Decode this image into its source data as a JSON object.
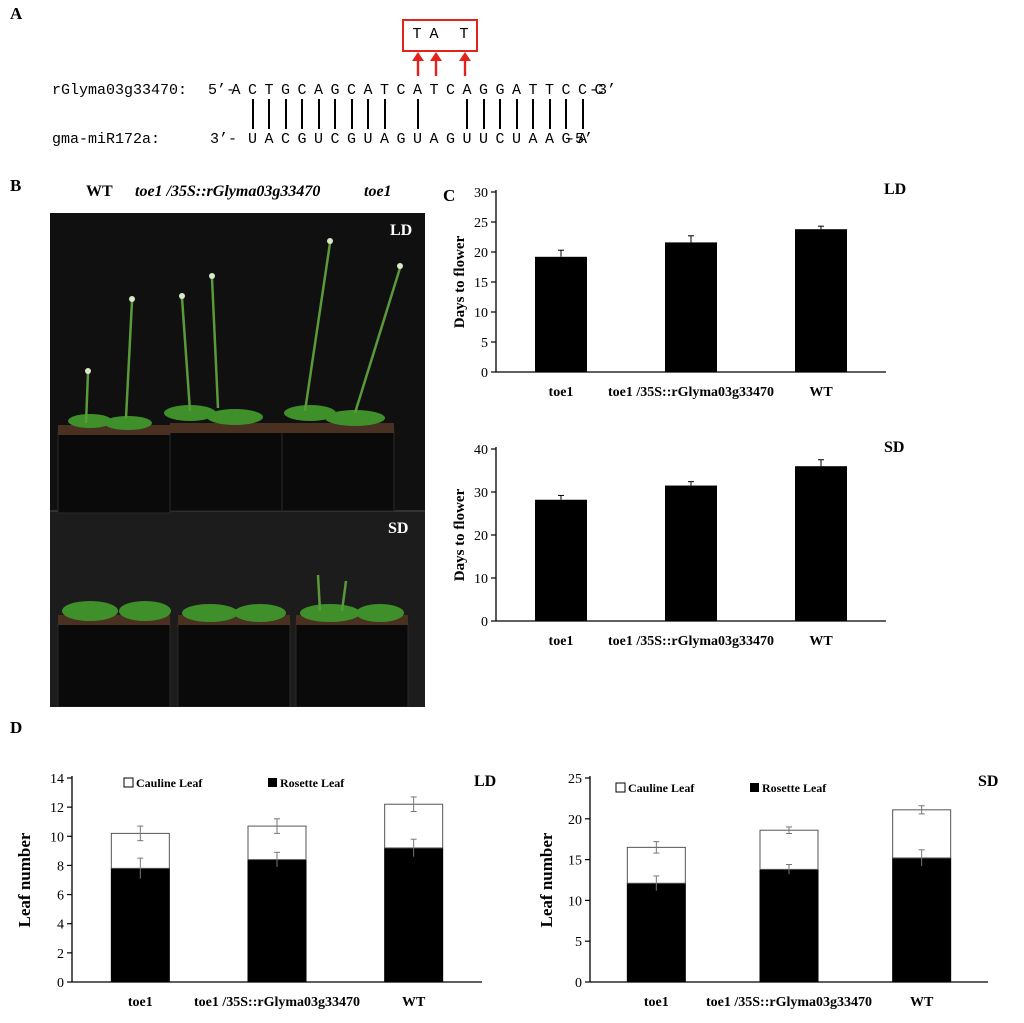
{
  "panels": {
    "a": "A",
    "b": "B",
    "c": "C",
    "d": "D"
  },
  "panel_a": {
    "top_label": "rGlyma03g33470:",
    "top_prefix": "5’-",
    "top_bases": [
      "A",
      "C",
      "T",
      "G",
      "C",
      "A",
      "G",
      "C",
      "A",
      "T",
      "C",
      "A",
      "T",
      "C",
      "A",
      "G",
      "G",
      "A",
      "T",
      "T",
      "C",
      "C",
      "C"
    ],
    "top_suffix": "-3’",
    "bottom_label": "gma-miR172a:",
    "bottom_prefix": "3’-",
    "bottom_bases": [
      "U",
      "A",
      "C",
      "G",
      "U",
      "C",
      "G",
      "U",
      "A",
      "G",
      "U",
      "A",
      "G",
      "U",
      "U",
      "C",
      "U",
      "A",
      "A",
      "G",
      "A"
    ],
    "bottom_suffix": "-5’",
    "mutations": [
      "T",
      "A",
      "T"
    ],
    "box_color": "#e2231a",
    "arrow_color": "#e2231a"
  },
  "panel_b": {
    "labels": [
      "WT",
      "toe1 /35S::rGlyma03g33470",
      "toe1"
    ],
    "photo_top_tag": "LD",
    "photo_bottom_tag": "SD"
  },
  "chart_data": [
    {
      "id": "C-LD",
      "type": "bar",
      "title": "LD",
      "ylabel": "Days to flower",
      "categories": [
        "toe1",
        "toe1 /35S::rGlyma03g33470",
        "WT"
      ],
      "values": [
        19.2,
        21.6,
        23.8
      ],
      "errors": [
        1.1,
        1.1,
        0.5
      ],
      "ylim": [
        0,
        30
      ],
      "yticks": [
        0,
        5,
        10,
        15,
        20,
        25,
        30
      ],
      "color": "#000000"
    },
    {
      "id": "C-SD",
      "type": "bar",
      "title": "SD",
      "ylabel": "Days to flower",
      "categories": [
        "toe1",
        "toe1 /35S::rGlyma03g33470",
        "WT"
      ],
      "values": [
        28.2,
        31.5,
        36.0
      ],
      "errors": [
        1.0,
        0.9,
        1.5
      ],
      "ylim": [
        0,
        40
      ],
      "yticks": [
        0,
        10,
        20,
        30,
        40
      ],
      "color": "#000000"
    },
    {
      "id": "D-LD",
      "type": "bar",
      "stacked": true,
      "title": "LD",
      "ylabel": "Leaf number",
      "categories": [
        "toe1",
        "toe1 /35S::rGlyma03g33470",
        "WT"
      ],
      "series": [
        {
          "name": "Rosette Leaf",
          "values": [
            7.8,
            8.4,
            9.2
          ],
          "errors": [
            0.7,
            0.5,
            0.6
          ],
          "color": "#000000"
        },
        {
          "name": "Cauline Leaf",
          "values": [
            2.4,
            2.3,
            3.0
          ],
          "errors": [
            0.5,
            0.5,
            0.5
          ],
          "color": "#ffffff"
        }
      ],
      "ylim": [
        0,
        14
      ],
      "yticks": [
        0,
        2,
        4,
        6,
        8,
        10,
        12,
        14
      ],
      "legend": "top-left"
    },
    {
      "id": "D-SD",
      "type": "bar",
      "stacked": true,
      "title": "SD",
      "ylabel": "Leaf number",
      "categories": [
        "toe1",
        "toe1 /35S::rGlyma03g33470",
        "WT"
      ],
      "series": [
        {
          "name": "Rosette Leaf",
          "values": [
            12.1,
            13.8,
            15.2
          ],
          "errors": [
            0.9,
            0.6,
            1.0
          ],
          "color": "#000000"
        },
        {
          "name": "Cauline Leaf",
          "values": [
            4.4,
            4.8,
            5.9
          ],
          "errors": [
            0.7,
            0.4,
            0.5
          ],
          "color": "#ffffff"
        }
      ],
      "ylim": [
        0,
        25
      ],
      "yticks": [
        0,
        5,
        10,
        15,
        20,
        25
      ],
      "legend": "top-left"
    }
  ]
}
